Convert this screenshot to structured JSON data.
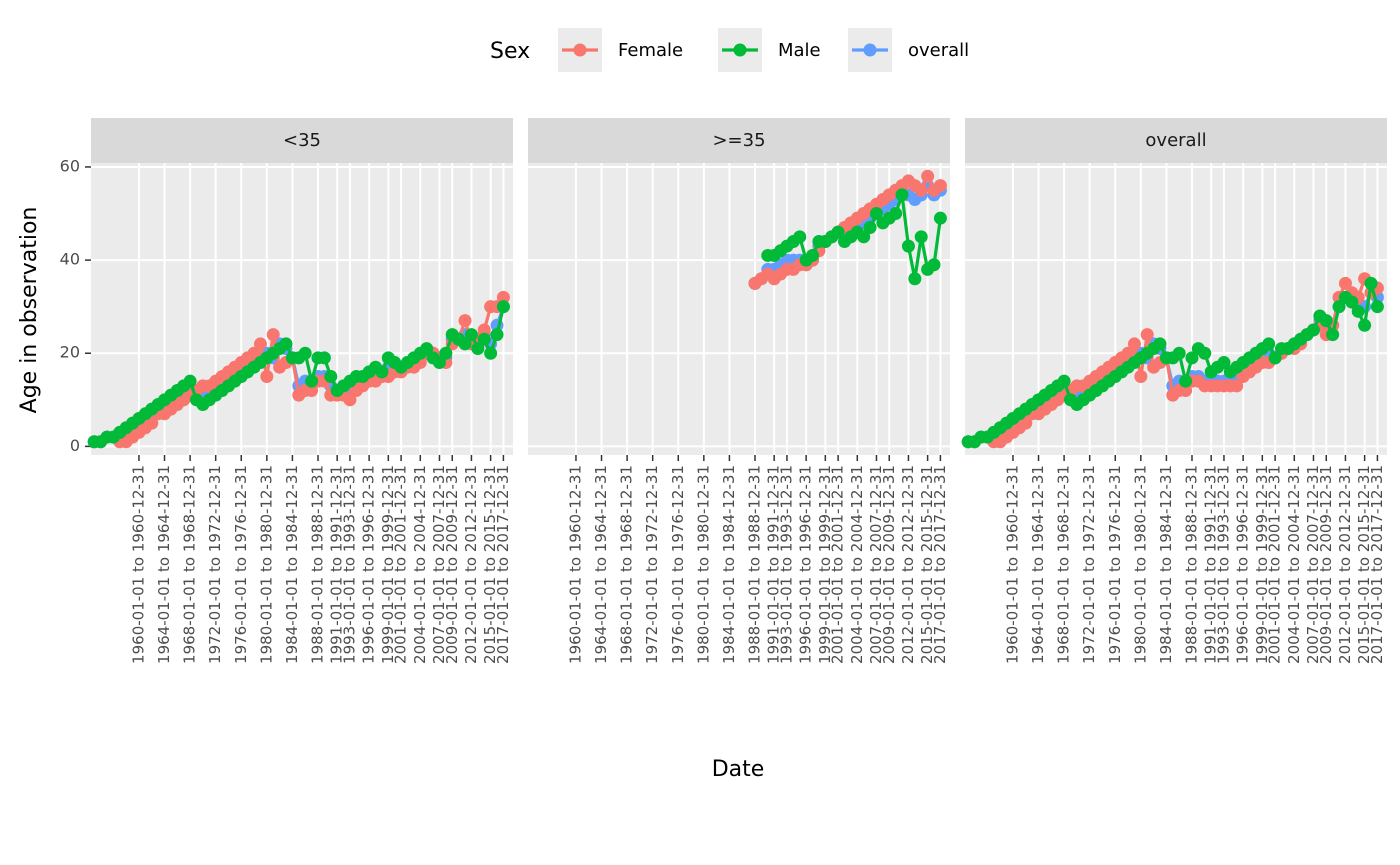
{
  "chart_data": {
    "type": "line",
    "legend_title": "Sex",
    "xlabel": "Date",
    "ylabel": "Age in observation",
    "ylim": [
      -1.85,
      60.85
    ],
    "yticks": [
      0,
      20,
      40,
      60
    ],
    "xlim": [
      1952.5,
      2018.5
    ],
    "xticks": [
      {
        "value": 1960,
        "label": "1960-01-01 to 1960-12-31"
      },
      {
        "value": 1964,
        "label": "1964-01-01 to 1964-12-31"
      },
      {
        "value": 1968,
        "label": "1968-01-01 to 1968-12-31"
      },
      {
        "value": 1972,
        "label": "1972-01-01 to 1972-12-31"
      },
      {
        "value": 1976,
        "label": "1976-01-01 to 1976-12-31"
      },
      {
        "value": 1980,
        "label": "1980-01-01 to 1980-12-31"
      },
      {
        "value": 1984,
        "label": "1984-01-01 to 1984-12-31"
      },
      {
        "value": 1988,
        "label": "1988-01-01 to 1988-12-31"
      },
      {
        "value": 1991,
        "label": "1991-01-01 to 1991-12-31"
      },
      {
        "value": 1993,
        "label": "1993-01-01 to 1993-12-31"
      },
      {
        "value": 1996,
        "label": "1996-01-01 to 1996-12-31"
      },
      {
        "value": 1999,
        "label": "1999-01-01 to 1999-12-31"
      },
      {
        "value": 2001,
        "label": "2001-01-01 to 2001-12-31"
      },
      {
        "value": 2004,
        "label": "2004-01-01 to 2004-12-31"
      },
      {
        "value": 2007,
        "label": "2007-01-01 to 2007-12-31"
      },
      {
        "value": 2009,
        "label": "2009-01-01 to 2009-12-31"
      },
      {
        "value": 2012,
        "label": "2012-01-01 to 2012-12-31"
      },
      {
        "value": 2015,
        "label": "2015-01-01 to 2015-12-31"
      },
      {
        "value": 2017,
        "label": "2017-01-01 to 2017-12-31"
      }
    ],
    "grid": true,
    "facets": [
      {
        "title": "<35",
        "x": [
          1953,
          1954,
          1955,
          1956,
          1957,
          1958,
          1959,
          1960,
          1961,
          1962,
          1963,
          1964,
          1965,
          1966,
          1967,
          1968,
          1969,
          1970,
          1971,
          1972,
          1973,
          1974,
          1975,
          1976,
          1977,
          1978,
          1979,
          1980,
          1981,
          1982,
          1983,
          1984,
          1985,
          1986,
          1987,
          1988,
          1989,
          1990,
          1991,
          1992,
          1993,
          1994,
          1995,
          1996,
          1997,
          1998,
          1999,
          2000,
          2001,
          2002,
          2003,
          2004,
          2005,
          2006,
          2007,
          2008,
          2009,
          2010,
          2011,
          2012,
          2013,
          2014,
          2015,
          2016,
          2017
        ],
        "series": [
          {
            "name": "Female",
            "color": "#F8766D",
            "values": [
              null,
              null,
              null,
              null,
              1,
              1,
              2,
              3,
              4,
              5,
              7,
              7,
              8,
              9,
              10,
              11,
              12,
              13,
              13,
              14,
              15,
              16,
              17,
              18,
              19,
              20,
              22,
              15,
              24,
              17,
              18,
              19,
              11,
              12,
              12,
              14,
              14,
              11,
              11,
              11,
              10,
              12,
              13,
              14,
              14,
              15,
              15,
              16,
              16,
              17,
              17,
              18,
              20,
              20,
              19,
              18,
              22,
              23,
              27,
              22,
              23,
              25,
              30,
              30,
              32
            ]
          },
          {
            "name": "Male",
            "color": "#00BA38",
            "values": [
              1,
              1,
              2,
              2,
              3,
              4,
              5,
              6,
              7,
              8,
              9,
              10,
              11,
              12,
              13,
              14,
              10,
              9,
              10,
              11,
              12,
              13,
              14,
              15,
              16,
              17,
              18,
              19,
              20,
              21,
              22,
              19,
              19,
              20,
              14,
              19,
              19,
              15,
              12,
              13,
              14,
              15,
              15,
              16,
              17,
              16,
              19,
              18,
              17,
              18,
              19,
              20,
              21,
              19,
              18,
              20,
              24,
              23,
              22,
              24,
              21,
              23,
              20,
              24,
              30
            ]
          },
          {
            "name": "overall",
            "color": "#619CFF",
            "values": [
              1,
              1,
              2,
              2,
              3,
              3,
              4,
              5,
              6,
              7,
              8,
              9,
              10,
              11,
              12,
              13,
              11,
              11,
              11,
              12,
              13,
              14,
              15,
              16,
              17,
              18,
              19,
              20,
              19,
              22,
              21,
              19,
              13,
              14,
              14,
              15,
              15,
              13,
              12,
              12,
              12,
              14,
              14,
              15,
              16,
              16,
              17,
              17,
              17,
              18,
              18,
              19,
              20,
              20,
              19,
              19,
              23,
              23,
              24,
              23,
              22,
              24,
              22,
              26,
              30
            ]
          }
        ]
      },
      {
        "title": ">=35",
        "x": [
          1988,
          1989,
          1990,
          1991,
          1992,
          1993,
          1994,
          1995,
          1996,
          1997,
          1998,
          1999,
          2000,
          2001,
          2002,
          2003,
          2004,
          2005,
          2006,
          2007,
          2008,
          2009,
          2010,
          2011,
          2012,
          2013,
          2014,
          2015,
          2016,
          2017
        ],
        "series": [
          {
            "name": "Female",
            "color": "#F8766D",
            "values": [
              35,
              36,
              37,
              36,
              37,
              38,
              38,
              39,
              39,
              40,
              42,
              44,
              45,
              46,
              47,
              48,
              49,
              50,
              51,
              52,
              53,
              54,
              55,
              56,
              57,
              56,
              55,
              58,
              55,
              56
            ]
          },
          {
            "name": "Male",
            "color": "#00BA38",
            "values": [
              null,
              null,
              41,
              41,
              42,
              43,
              44,
              45,
              40,
              41,
              44,
              44,
              45,
              46,
              44,
              45,
              46,
              45,
              47,
              50,
              48,
              49,
              50,
              54,
              43,
              36,
              45,
              38,
              39,
              49
            ]
          },
          {
            "name": "overall",
            "color": "#619CFF",
            "values": [
              35,
              36,
              38,
              38,
              39,
              40,
              40,
              40,
              39,
              40,
              43,
              44,
              45,
              46,
              46,
              47,
              47,
              48,
              49,
              51,
              51,
              52,
              53,
              55,
              54,
              53,
              54,
              56,
              54,
              55
            ]
          }
        ]
      },
      {
        "title": "overall",
        "x": [
          1953,
          1954,
          1955,
          1956,
          1957,
          1958,
          1959,
          1960,
          1961,
          1962,
          1963,
          1964,
          1965,
          1966,
          1967,
          1968,
          1969,
          1970,
          1971,
          1972,
          1973,
          1974,
          1975,
          1976,
          1977,
          1978,
          1979,
          1980,
          1981,
          1982,
          1983,
          1984,
          1985,
          1986,
          1987,
          1988,
          1989,
          1990,
          1991,
          1992,
          1993,
          1994,
          1995,
          1996,
          1997,
          1998,
          1999,
          2000,
          2001,
          2002,
          2003,
          2004,
          2005,
          2006,
          2007,
          2008,
          2009,
          2010,
          2011,
          2012,
          2013,
          2014,
          2015,
          2016,
          2017
        ],
        "series": [
          {
            "name": "Female",
            "color": "#F8766D",
            "values": [
              null,
              null,
              null,
              null,
              1,
              1,
              2,
              3,
              4,
              5,
              7,
              7,
              8,
              9,
              10,
              11,
              12,
              13,
              13,
              14,
              15,
              16,
              17,
              18,
              19,
              20,
              22,
              15,
              24,
              17,
              18,
              19,
              11,
              12,
              12,
              14,
              14,
              13,
              13,
              13,
              13,
              13,
              13,
              15,
              16,
              17,
              18,
              18,
              19,
              20,
              21,
              21,
              22,
              24,
              25,
              26,
              24,
              26,
              32,
              35,
              33,
              32,
              36,
              33,
              34
            ]
          },
          {
            "name": "Male",
            "color": "#00BA38",
            "values": [
              1,
              1,
              2,
              2,
              3,
              4,
              5,
              6,
              7,
              8,
              9,
              10,
              11,
              12,
              13,
              14,
              10,
              9,
              10,
              11,
              12,
              13,
              14,
              15,
              16,
              17,
              18,
              19,
              20,
              21,
              22,
              19,
              19,
              20,
              14,
              19,
              21,
              20,
              16,
              17,
              18,
              16,
              17,
              18,
              19,
              20,
              21,
              22,
              19,
              21,
              21,
              22,
              23,
              24,
              25,
              28,
              27,
              24,
              30,
              32,
              31,
              29,
              26,
              35,
              30
            ]
          },
          {
            "name": "overall",
            "color": "#619CFF",
            "values": [
              1,
              1,
              2,
              2,
              3,
              3,
              4,
              5,
              6,
              7,
              8,
              9,
              10,
              11,
              12,
              13,
              11,
              11,
              11,
              12,
              13,
              14,
              15,
              16,
              17,
              18,
              19,
              20,
              19,
              22,
              21,
              19,
              13,
              14,
              14,
              15,
              15,
              14,
              14,
              14,
              14,
              15,
              15,
              16,
              17,
              18,
              19,
              20,
              19,
              20,
              21,
              22,
              23,
              24,
              25,
              27,
              26,
              26,
              30,
              32,
              31,
              30,
              30,
              33,
              32
            ]
          }
        ]
      }
    ]
  }
}
